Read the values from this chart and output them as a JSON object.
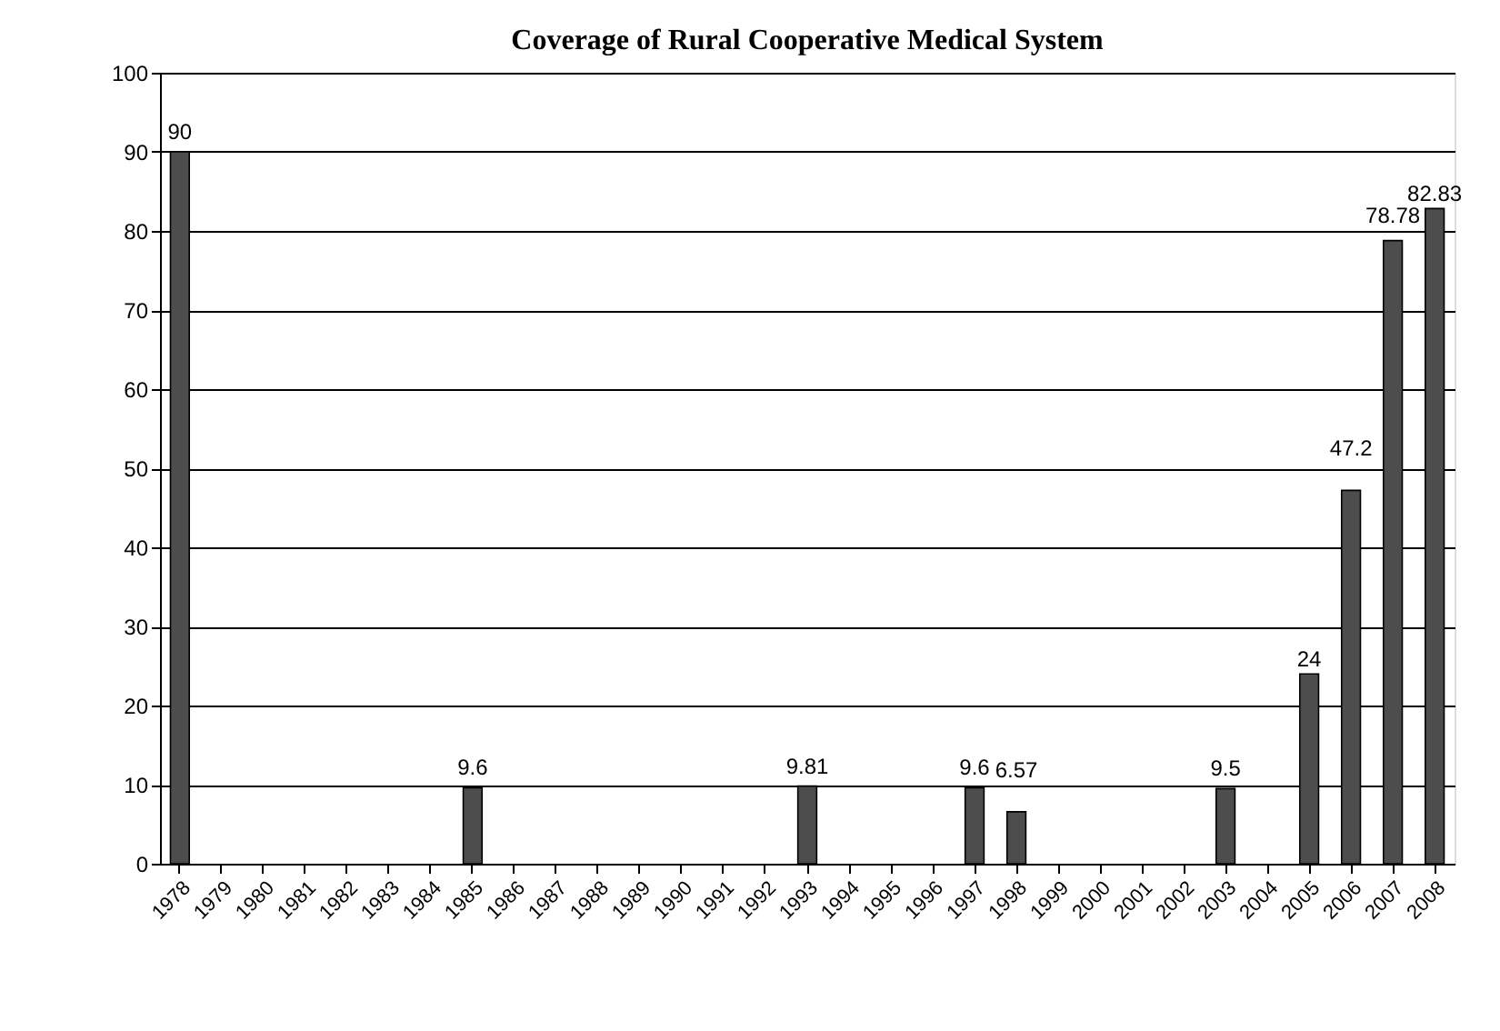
{
  "chart_data": {
    "type": "bar",
    "title": "Coverage of Rural Cooperative Medical System",
    "categories": [
      "1978",
      "1979",
      "1980",
      "1981",
      "1982",
      "1983",
      "1984",
      "1985",
      "1986",
      "1987",
      "1988",
      "1989",
      "1990",
      "1991",
      "1992",
      "1993",
      "1994",
      "1995",
      "1996",
      "1997",
      "1998",
      "1999",
      "2000",
      "2001",
      "2002",
      "2003",
      "2004",
      "2005",
      "2006",
      "2007",
      "2008"
    ],
    "values": [
      90,
      null,
      null,
      null,
      null,
      null,
      null,
      9.6,
      null,
      null,
      null,
      null,
      null,
      null,
      null,
      9.81,
      null,
      null,
      null,
      9.6,
      6.57,
      null,
      null,
      null,
      null,
      9.5,
      null,
      24,
      47.2,
      78.78,
      82.83
    ],
    "color": "#4d4d4d",
    "ylim": [
      0,
      100
    ],
    "yticks": [
      0,
      10,
      20,
      30,
      40,
      50,
      60,
      70,
      80,
      90,
      100
    ],
    "grid": "y",
    "data_labels": true
  }
}
